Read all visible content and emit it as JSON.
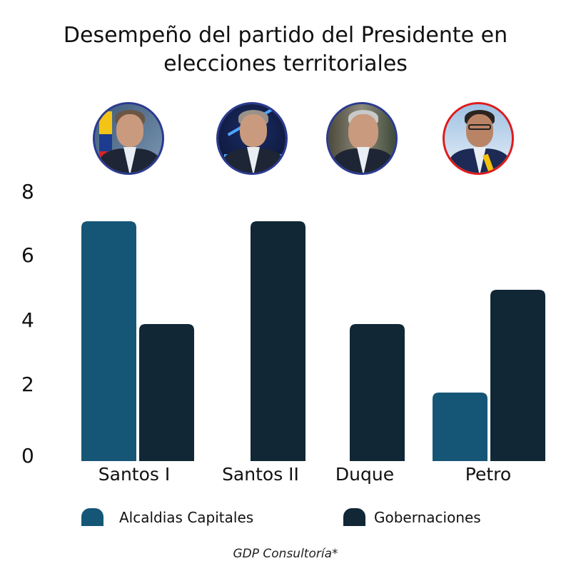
{
  "chart_data": {
    "type": "bar",
    "title": "Desempeño del partido del Presidente en elecciones territoriales",
    "title_lines": [
      "Desempeño del partido del Presidente en",
      "elecciones territoriales"
    ],
    "categories": [
      "Santos I",
      "Santos II",
      "Duque",
      "Petro"
    ],
    "series": [
      {
        "name": "Alcaldias Capitales",
        "color": "#155676",
        "values": [
          7,
          0,
          0,
          2
        ]
      },
      {
        "name": "Gobernaciones",
        "color": "#112735",
        "values": [
          4,
          7,
          4,
          5
        ]
      }
    ],
    "xlabel": "",
    "ylabel": "",
    "ylim": [
      0,
      8
    ],
    "yticks": [
      "0",
      "2",
      "4",
      "6",
      "8"
    ],
    "grid": false,
    "legend_position": "bottom"
  },
  "portraits": [
    {
      "name": "Santos I",
      "border_color": "#2b3a8f"
    },
    {
      "name": "Santos II",
      "border_color": "#2b3a8f"
    },
    {
      "name": "Duque",
      "border_color": "#2b3a8f"
    },
    {
      "name": "Petro",
      "border_color": "#e01b1b"
    }
  ],
  "source": "GDP Consultoría*"
}
